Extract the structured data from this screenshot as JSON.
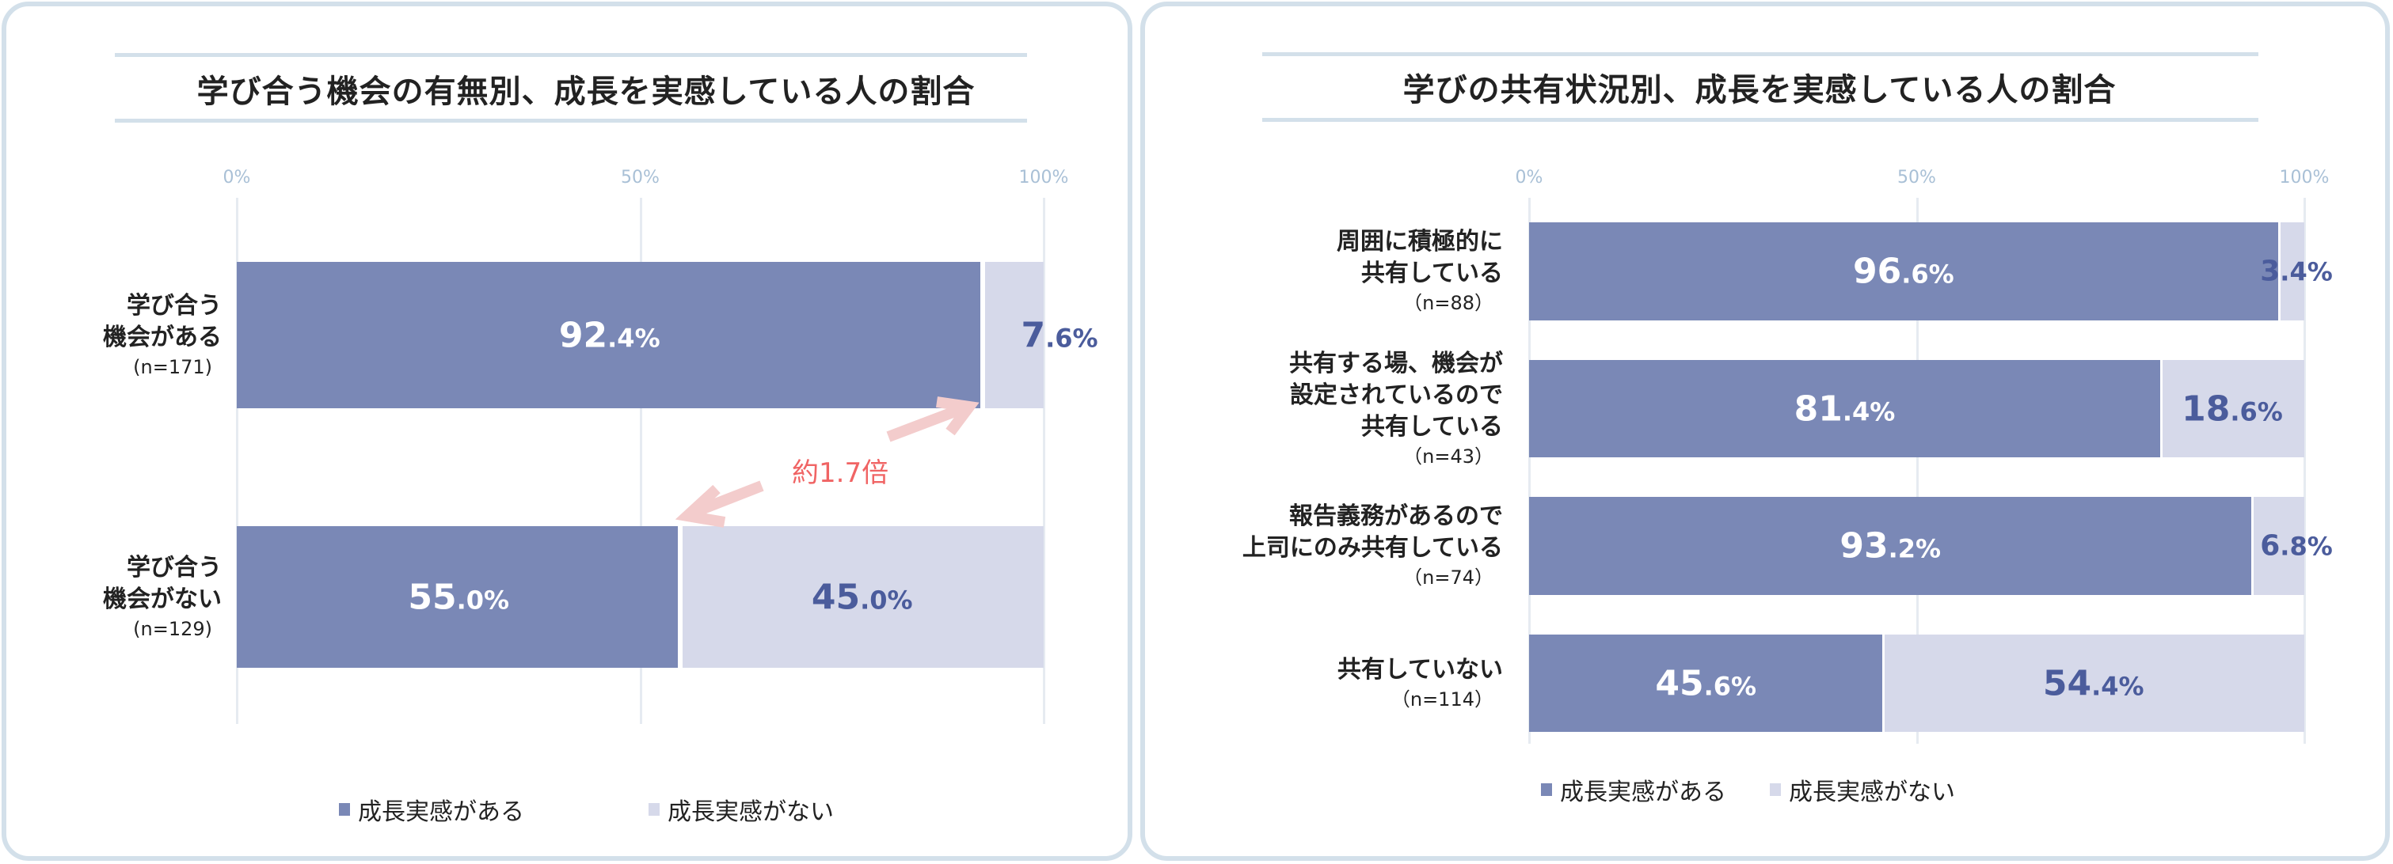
{
  "chart_data": [
    {
      "type": "bar",
      "orientation": "horizontal",
      "stacked": true,
      "title": "学び合う機会の有無別、成長を実感している人の割合",
      "xlim": [
        0,
        100
      ],
      "ticks": [
        "0%",
        "50%",
        "100%"
      ],
      "categories": [
        {
          "label": [
            "学び合う",
            "機会がある"
          ],
          "n": "(n=171)"
        },
        {
          "label": [
            "学び合う",
            "機会がない"
          ],
          "n": "(n=129)"
        }
      ],
      "series": [
        {
          "name": "成長実感がある",
          "color": "#7a88b6",
          "values": [
            92.4,
            55.0
          ]
        },
        {
          "name": "成長実感がない",
          "color": "#d6d9ea",
          "values": [
            7.6,
            45.0
          ]
        }
      ],
      "annotation": "約1.7倍",
      "legend": "bottom"
    },
    {
      "type": "bar",
      "orientation": "horizontal",
      "stacked": true,
      "title": "学びの共有状況別、成長を実感している人の割合",
      "xlim": [
        0,
        100
      ],
      "ticks": [
        "0%",
        "50%",
        "100%"
      ],
      "categories": [
        {
          "label": [
            "周囲に積極的に",
            "共有している"
          ],
          "n": "（n=88）"
        },
        {
          "label": [
            "共有する場、機会が",
            "設定されているので",
            "共有している"
          ],
          "n": "（n=43）"
        },
        {
          "label": [
            "報告義務があるので",
            "上司にのみ共有している"
          ],
          "n": "（n=74）"
        },
        {
          "label": [
            "共有していない"
          ],
          "n": "（n=114）"
        }
      ],
      "series": [
        {
          "name": "成長実感がある",
          "color": "#7a88b6",
          "values": [
            96.6,
            81.4,
            93.2,
            45.6
          ]
        },
        {
          "name": "成長実感がない",
          "color": "#d6d9ea",
          "values": [
            3.4,
            18.6,
            6.8,
            54.4
          ]
        }
      ],
      "legend": "bottom"
    }
  ]
}
